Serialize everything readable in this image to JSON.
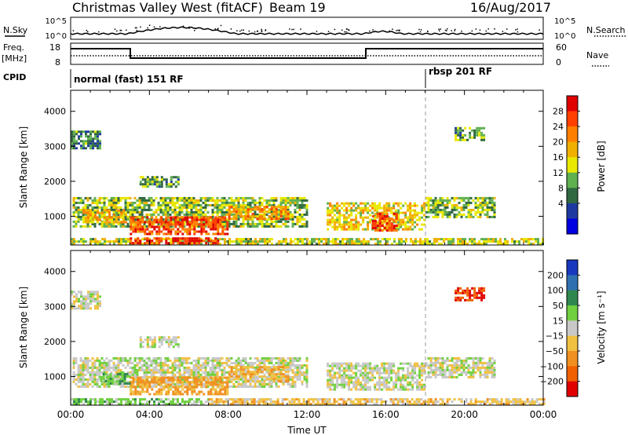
{
  "header": {
    "title": "Christmas Valley West (fitACF)",
    "beam": "Beam 19",
    "date": "16/Aug/2017"
  },
  "top_panels": {
    "nsky_label": "N.Sky",
    "nsky_ticks": [
      "10^5",
      "10^0"
    ],
    "nsearch_label": "N.Search",
    "nsearch_ticks": [
      "10^5",
      "10^0"
    ],
    "freq_label": "Freq.",
    "freq_unit": "[MHz]",
    "freq_ticks": [
      "18",
      "8"
    ],
    "nave_label": "Nave",
    "nave_ticks": [
      "60",
      "0"
    ],
    "cpid_label": "CPID",
    "cpid_segments": [
      {
        "label": "normal (fast) 151 RF",
        "start_hour": 0
      },
      {
        "label": "rbsp 201 RF",
        "start_hour": 18
      }
    ]
  },
  "chart_data": [
    {
      "type": "heatmap",
      "name": "power",
      "xlabel": "",
      "ylabel": "Slant Range [km]",
      "xlim": [
        0,
        24
      ],
      "ylim": [
        180,
        4600
      ],
      "y_ticks": [
        1000,
        2000,
        3000,
        4000
      ],
      "colorbar_label": "Power [dB]",
      "colorbar_ticks": [
        "28",
        "24",
        "20",
        "16",
        "12",
        "8",
        "4"
      ],
      "colorbar_colors": [
        "#e00000",
        "#ff4000",
        "#ff8000",
        "#f0b000",
        "#e8e800",
        "#60b050",
        "#306840",
        "#1e3aa0",
        "#0000e0"
      ],
      "regions": [
        {
          "t0": 0.1,
          "t1": 12.0,
          "r0": 700,
          "r1": 1550,
          "level": 14
        },
        {
          "t0": 3.0,
          "t1": 8.0,
          "r0": 480,
          "r1": 1000,
          "level": 26
        },
        {
          "t0": 0.6,
          "t1": 2.8,
          "r0": 850,
          "r1": 1200,
          "level": 20
        },
        {
          "t0": 8.0,
          "t1": 11.0,
          "r0": 900,
          "r1": 1300,
          "level": 22
        },
        {
          "t0": 13.0,
          "t1": 18.0,
          "r0": 600,
          "r1": 1400,
          "level": 18
        },
        {
          "t0": 15.3,
          "t1": 16.5,
          "r0": 600,
          "r1": 1100,
          "level": 26
        },
        {
          "t0": 18.0,
          "t1": 21.5,
          "r0": 1000,
          "r1": 1550,
          "level": 14
        },
        {
          "t0": 0.0,
          "t1": 24.0,
          "r0": 200,
          "r1": 380,
          "level": 16
        },
        {
          "t0": 3.0,
          "t1": 7.5,
          "r0": 250,
          "r1": 400,
          "level": 28
        },
        {
          "t0": 0.0,
          "t1": 1.5,
          "r0": 2950,
          "r1": 3450,
          "level": 10
        },
        {
          "t0": 3.5,
          "t1": 5.5,
          "r0": 1850,
          "r1": 2150,
          "level": 12
        },
        {
          "t0": 19.5,
          "t1": 21.0,
          "r0": 3150,
          "r1": 3550,
          "level": 12
        }
      ]
    },
    {
      "type": "heatmap",
      "name": "velocity",
      "xlabel": "Time UT",
      "ylabel": "Slant Range [km]",
      "xlim": [
        0,
        24
      ],
      "ylim": [
        180,
        4600
      ],
      "x_ticks": [
        "00:00",
        "04:00",
        "08:00",
        "12:00",
        "16:00",
        "20:00",
        "00:00"
      ],
      "y_ticks": [
        1000,
        2000,
        3000,
        4000
      ],
      "colorbar_label": "Velocity [m s⁻¹]",
      "colorbar_ticks": [
        "200",
        "100",
        "50",
        "15",
        "−15",
        "−50",
        "−100",
        "−200"
      ],
      "colorbar_colors": [
        "#1838c0",
        "#3070b0",
        "#308850",
        "#70d040",
        "#c8c8c8",
        "#f0c040",
        "#f09020",
        "#f06000",
        "#e00000"
      ],
      "regions": [
        {
          "t0": 0.1,
          "t1": 12.0,
          "r0": 700,
          "r1": 1550,
          "level": 0
        },
        {
          "t0": 3.0,
          "t1": 8.0,
          "r0": 500,
          "r1": 1000,
          "level": -60
        },
        {
          "t0": 8.0,
          "t1": 11.0,
          "r0": 850,
          "r1": 1300,
          "level": -40
        },
        {
          "t0": 1.5,
          "t1": 3.0,
          "r0": 800,
          "r1": 1100,
          "level": 40
        },
        {
          "t0": 13.0,
          "t1": 18.0,
          "r0": 600,
          "r1": 1400,
          "level": 0
        },
        {
          "t0": 18.0,
          "t1": 21.5,
          "r0": 1000,
          "r1": 1550,
          "level": 0
        },
        {
          "t0": 0.0,
          "t1": 7.0,
          "r0": 200,
          "r1": 380,
          "level": 30
        },
        {
          "t0": 7.0,
          "t1": 24.0,
          "r0": 200,
          "r1": 380,
          "level": -30
        },
        {
          "t0": 0.0,
          "t1": 1.5,
          "r0": 2950,
          "r1": 3450,
          "level": 0
        },
        {
          "t0": 3.5,
          "t1": 5.5,
          "r0": 1850,
          "r1": 2150,
          "level": 0
        },
        {
          "t0": 19.5,
          "t1": 21.0,
          "r0": 3150,
          "r1": 3550,
          "level": -200
        }
      ]
    }
  ]
}
